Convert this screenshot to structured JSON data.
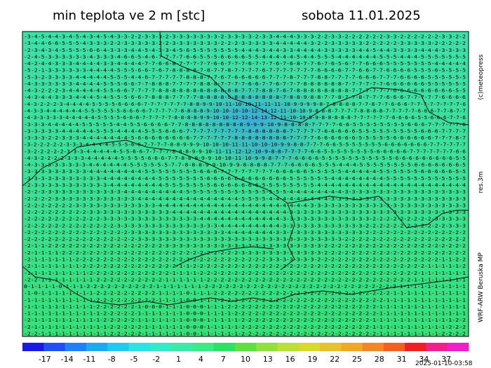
{
  "header": {
    "title": "min teplota ve 2 m [stc]",
    "date": "sobota 11.01.2025"
  },
  "side_labels": {
    "copyright": "(c)meteopress",
    "resolution": "res.3m",
    "model": "WRF-ARW Beruska MP"
  },
  "timestamp": "2025-01-10-03:58",
  "map": {
    "rows": [
      "-3-4-5-4-4-3-4-5-4-3-4-5-4-3-3-2-2-3-3-3-2-3-3-3-3-3-3-3-2-3-3-3-3-2-3-3-4-4-4-3-3-3-2-2-3-3-2-2-2-2-2-2-3-3-2-2-2-2-2-2-3-3-2-2",
      "-3-4-4-6-6-5-5-5-4-3-3-3-2-2-3-3-3-3-3-2-2-3-3-3-3-3-3-3-2-2-2-3-3-3-3-3-4-4-4-4-4-3-2-2-3-3-3-3-3-2-2-2-2-2-3-3-3-3-3-2-2-2-2-2",
      "-2-3-4-3-4-5-5-5-5-6-6-4-3-3-3-4-4-5-4-3-3-4-5-6-5-5-5-5-5-5-5-4-4-4-3-4-4-3-3-4-4-4-4-3-3-3-3-3-4-4-5-4-4-3-3-3-3-4-4-4-3-3-3-3",
      "-2-4-5-3-3-3-3-3-3-4-3-3-3-4-6-6-5-4-6-7-7-7-7-6-6-5-5-5-6-6-6-6-5-5-4-4-4-4-4-5-4-4-5-5-5-4-4-4-4-4-4-5-5-5-4-4-4-5-5-5-5-5-5-5",
      "-4-2-4-4-3-3-3-4-4-4-4-3-3-4-4-4-4-7-7-6-6-8-7-7-7-7-7-6-6-7-7-7-6-7-7-7-6-7-6-8-7-7-6-7-6-5-6-7-7-6-6-6-5-5-5-5-5-5-5-4-4-4-4-4",
      "-5-2-1-3-3-3-3-3-3-4-4-4-4-5-5-5-6-6-7-6-7-8-8-8-8-7-8-7-7-8-7-7-7-7-6-7-7-7-7-7-7-7-6-6-6-6-7-7-6-6-7-7-6-6-6-6-5-5-5-6-5-5-5-5",
      "-5-3-2-3-3-3-3-4-4-4-4-4-5-5-5-4-4-6-7-7-7-7-7-8-8-8-7-7-6-7-6-6-6-6-6-7-7-7-8-7-7-7-8-8-7-7-7-7-6-6-6-7-7-7-6-6-6-6-5-5-5-5-5-5",
      "-4-3-3-3-3-3-3-4-4-4-4-5-5-5-6-6-7-7-8-8-8-7-7-7-7-8-8-8-7-7-7-7-6-6-7-7-6-7-7-7-8-8-8-8-8-8-7-7-7-7-7-7-6-6-6-6-6-6-5-5-5-5-5-5",
      "-4-3-2-2-2-3-4-4-4-4-4-5-5-6-6-7-7-7-7-8-8-8-8-8-8-8-8-8-8-8-8-7-7-7-8-8-7-6-7-8-8-8-8-8-8-8-8-7-7-7-7-7-7-6-6-6-6-6-6-6-6-6-5-5",
      "-4-3-4-4-3-3-3-4-4-4-5-4-5-5-5-6-6-7-8-8-8-7-7-7-7-8-8-8-8-9-8-8-8-8-8-8-8-7-8-8-9-8-8-7-7-8-7-7-8-7-7-7-6-6-6-7-7-7-7-7-6-6-6-6",
      "-4-3-2-2-2-3-4-4-4-4-5-5-5-5-6-6-6-6-7-7-7-7-7-7-7-8-8-9-9-10-11-10-10-11-11-11-10-9-9-9-9-8-7-8-8-8-8-7-7-8-7-7-6-6-6-7-7-7-7-7-7-7-7-6",
      "-4-3-3-4-4-4-4-4-4-5-5-5-5-5-5-6-6-6-6-7-7-7-7-7-8-8-8-8-9-10-10-10-10-12-14-12-11-10-10-9-8-8-8-7-7-7-7-8-8-8-8-7-7-7-7-7-6-6-6-7-7-8-7-7",
      "-4-3-3-3-3-3-4-4-4-4-4-5-5-5-5-6-6-6-7-7-7-7-7-8-8-8-8-9-9-10-10-12-12-14-13-12-11-10-10-9-9-8-8-8-8-8-7-7-7-7-7-7-6-6-6-6-5-5-6-6-6-7-7-6",
      "-3-3-3-4-4-4-4-4-5-5-5-5-5-4-4-5-5-6-6-6-6-7-7-8-8-8-8-8-8-8-8-8-9-9-9-10-9-8-8-8-8-7-7-7-7-6-6-5-5-5-5-5-5-5-5-6-6-6-7-7-7-7-7-6",
      "-3-3-3-3-3-4-4-4-4-4-5-5-5-4-4-4-4-5-5-5-6-6-6-7-7-7-7-7-7-7-7-7-8-8-8-8-8-8-7-7-7-7-7-6-6-6-6-6-5-5-5-5-5-5-5-5-5-6-6-6-7-7-7-7",
      "-3-3-3-2-2-3-3-3-4-4-4-4-4-4-4-5-6-6-6-6-6-6-6-6-7-7-7-7-7-7-8-8-8-8-8-8-8-8-7-7-7-7-6-6-6-6-6-6-5-5-5-5-5-6-6-6-6-6-6-7-7-7-8-7",
      "-3-2-2-2-2-2-3-3-3-4-4-4-4-5-5-5-6-6-7-7-7-7-8-8-9-9-9-10-10-10-11-11-10-10-10-9-9-8-8-7-7-7-6-6-5-5-5-5-5-5-5-6-6-6-6-6-6-6-7-7-7-7-7-7",
      "-3-2-2-2-2-2-3-3-3-4-4-4-4-4-5-5-6-6-7-7-7-7-8-8-8-9-9-10-11-11-12-12-10-9-8-8-7-7-7-7-6-6-5-5-5-5-5-5-5-5-6-6-6-6-6-7-7-7-7-7-7-7-6-6",
      "-4-3-2-2-2-2-3-3-3-4-4-4-4-4-5-5-5-5-6-6-6-7-7-8-8-9-9-9-10-10-11-10-9-9-8-7-7-7-6-6-6-6-5-5-5-5-5-5-5-5-5-5-5-6-6-6-6-6-6-6-6-6-5-5",
      "-4-3-3-3-3-3-3-3-3-4-4-4-4-4-4-5-5-5-5-5-5-7-7-8-8-8-9-9-10-9-9-8-8-8-8-7-7-7-6-6-6-6-5-5-5-4-4-4-5-5-5-5-5-5-5-5-6-6-6-6-6-6-6-5",
      "-3-3-3-3-3-3-3-3-3-4-4-4-4-4-4-4-4-5-5-5-5-5-5-5-5-6-6-6-7-7-7-7-7-7-7-7-6-6-6-6-6-5-5-5-5-5-4-4-4-4-4-5-5-5-5-5-5-6-6-6-6-6-5-5",
      "-3-3-3-3-3-3-3-3-3-3-3-4-4-4-4-4-4-4-4-5-5-5-5-5-5-5-6-6-6-6-6-6-6-6-6-6-6-6-5-5-5-5-5-5-4-4-4-4-4-4-4-4-5-5-5-5-5-5-5-5-5-5-5-5",
      "-2-3-3-3-3-3-3-3-3-3-3-3-4-4-4-4-4-4-4-4-5-5-5-5-5-5-5-6-6-6-6-6-6-6-5-5-5-5-5-5-5-5-4-4-4-4-4-4-4-4-4-4-4-4-4-4-4-4-4-4-4-4-4-4",
      "-2-2-3-3-3-3-3-3-3-3-3-3-3-3-4-4-4-4-4-4-4-4-4-5-5-5-5-5-5-5-5-5-5-5-5-5-5-5-4-4-4-4-4-4-4-4-3-3-3-3-3-3-3-3-3-3-3-3-3-3-3-3-3-3",
      "-2-2-2-2-3-3-3-3-3-3-3-3-3-3-3-3-4-4-4-4-4-4-4-4-4-4-4-4-4-4-4-5-5-5-5-4-4-4-4-4-4-4-4-4-3-3-3-3-3-3-3-3-3-3-3-3-3-3-3-3-3-3-3-3",
      "-2-2-2-2-2-2-2-3-3-3-3-3-3-3-3-3-3-3-3-4-4-4-4-4-4-4-4-4-4-4-4-4-4-4-4-4-4-4-4-4-4-3-3-3-3-3-3-3-3-3-3-3-3-3-3-3-3-3-3-3-3-3-3-3",
      "-2-2-2-2-2-2-2-2-2-3-3-3-3-3-3-3-3-3-3-3-3-4-4-4-4-4-4-4-4-4-4-4-4-4-4-4-4-4-3-3-3-3-3-3-3-3-3-3-3-3-3-3-3-3-3-3-3-3-3-3-3-3-3-3",
      "-2-2-2-2-2-2-2-2-2-2-2-3-3-3-3-3-3-3-3-3-3-3-3-3-3-4-4-4-4-4-4-4-4-4-4-4-4-3-3-3-3-3-3-3-3-3-3-3-3-3-2-2-2-2-2-2-2-2-2-3-3-3-3-3",
      "-2-2-2-2-2-2-2-2-2-2-2-2-2-3-3-3-3-3-3-3-3-3-3-3-3-3-3-3-4-4-4-4-4-4-4-4-4-3-3-3-3-3-3-3-3-3-3-3-3-2-2-2-2-2-2-2-2-2-2-2-2-3-3-3",
      "-2-2-2-2-2-2-2-2-2-2-2-2-2-2-2-3-3-3-3-3-3-3-3-3-3-3-3-3-3-4-4-4-4-4-4-4-3-3-3-3-3-3-3-3-3-3-3-3-3-2-2-2-2-2-2-2-2-2-2-2-2-2-2-2",
      "-2-2-2-2-2-2-2-2-2-2-2-2-2-2-2-2-3-3-3-3-3-3-3-3-3-3-3-3-3-3-3-3-3-3-3-3-3-3-3-3-3-3-3-3-3-3-2-2-2-2-2-2-2-2-2-2-2-2-2-2-2-2-2-2",
      "-2-1-1-2-2-2-2-2-2-2-2-2-2-2-2-2-2-2-2-2-3-3-3-3-3-3-3-3-3-3-3-3-3-3-3-3-3-3-3-3-3-3-3-2-2-2-2-2-2-2-2-2-2-2-2-2-2-2-2-2-2-2-2-2",
      "-2-1-1-1-1-2-2-2-2-2-2-2-2-2-2-2-2-2-2-2-2-2-2-2-2-2-2-2-2-2-2-3-3-3-3-3-3-3-3-3-3-3-3-2-2-2-2-2-2-2-2-2-2-2-2-2-2-2-2-2-2-2-2-2",
      "-2-1-1-1-1-1-1-2-2-2-2-2-2-2-2-2-2-2-2-2-2-2-2-2-2-2-2-2-2-2-2-2-2-2-2-3-3-3-3-3-3-3-2-2-2-2-2-2-2-2-2-2-2-2-2-2-2-2-2-2-1-1-2-2",
      "-2-1-1-1-1-1-1-1-2-2-2-2-2-2-2-2-2-2-2-2-2-2-1-1-2-2-2-2-2-2-2-2-2-2-2-2-2-2-2-2-2-2-2-2-2-2-2-2-2-2-2-2-2-2-2-2-2-2-1-1-1-1-1-2",
      "-1-1-1-1-1-1-1-1-1-2-2-2-2-2-2-2-2-2-2-2-2-1-1-1-1-2-2-2-2-2-2-2-2-2-2-2-2-2-2-2-2-2-2-2-2-2-2-2-2-2-2-2-2-2-2-2-2-1-1-1-1-1-1-1",
      "-2-2-1-1-1-1-1-1-1-1-2-2-2-2-2-2-2-2-2-2-1-1-1-1-1-1-2-2-2-2-2-2-2-2-2-2-2-2-2-2-2-2-2-2-2-2-2-2-2-2-2-2-2-2-2-2-1-1-1-1-1-1-1-1",
      "0-1-1-1-1-0-1-1-1-2-2-2-2-2-2-2-2-2-2-1-1-1-1-1-1-1-2-2-2-2-2-2-2-2-2-2-2-2-2-2-2-2-2-2-2-2-2-2-2-2-2-2-2-2-1-1-1-1-1-1-1-1-1-1",
      "-1-0-1-1-1-1-1-1-1-1-2-2-2-2-2-2-2-2-2-1-1-1-1-0-1-1-1-2-2-2-2-2-2-2-2-2-2-2-2-2-2-2-2-2-2-2-2-2-2-2-2-2-2-1-1-1-1-1-1-1-1-1-1-1",
      "-1-1-1-1-1-1-1-1-1-1-2-2-2-2-2-2-2-2-2-1-1-1-1-0-0-1-1-1-2-2-2-2-2-2-2-2-2-2-2-2-2-2-2-2-2-2-2-2-2-2-2-2-1-1-1-1-1-1-1-1-1-1-1-1",
      "-1-1-1-1-1-1-1-1-1-1-2-2-2-2-2-2-1-0-0-0-1-1-1-0-0-0-1-1-1-2-2-2-2-2-2-2-2-2-2-2-2-2-2-2-2-2-2-2-2-2-2-1-1-1-1-1-1-1-1-1-1-1-1-1",
      "-1-1-1-1-1-1-1-1-1-1-1-2-2-2-2-2-1-1-1-1-1-1-1-0-0-0-1-1-1-1-2-2-2-2-2-2-2-2-2-2-2-2-2-2-2-2-2-2-2-2-2-1-1-1-1-1-1-1-1-1-1-1-1-1",
      "-2-1-1-1-1-1-1-1-1-1-1-2-2-2-2-2-1-1-1-1-1-1-1-0-0-0-1-1-1-1-1-2-2-2-2-2-2-2-2-2-2-2-2-2-2-2-2-2-2-2-1-1-1-1-1-1-1-1-1-1-1-1-2-2",
      "-2-1-1-1-1-1-1-1-1-1-1-1-2-2-2-2-2-1-1-1-1-1-1-0-0-0-1-1-1-1-1-2-2-2-2-2-2-2-2-2-2-2-2-2-2-2-2-2-2-2-1-1-1-1-1-1-1-1-1-1-1-2-2-2",
      "-2-2-1-1-1-1-1-1-1-1-1-1-2-2-2-2-2-1-1-1-1-1-1-0-0-1-1-1-1-1-1-2-2-2-2-2-2-2-2-2-2-2-2-2-2-2-2-2-2-2-2-1-1-1-1-1-1-1-1-1-2-2-2-2"
    ]
  },
  "colorbar": {
    "lim": [
      -20,
      40
    ],
    "ticks": [
      -17,
      -14,
      -11,
      -8,
      -5,
      -2,
      1,
      4,
      7,
      10,
      13,
      16,
      19,
      22,
      25,
      28,
      31,
      34,
      37
    ],
    "colors": [
      "#1a1ae6",
      "#1f50f0",
      "#2080f5",
      "#20a8f0",
      "#25c8f0",
      "#30e0e8",
      "#38e8c8",
      "#3ee8a8",
      "#40e888",
      "#30e060",
      "#60e040",
      "#90e040",
      "#b8e038",
      "#d8d830",
      "#e8c030",
      "#f0a828",
      "#f08828",
      "#f06020",
      "#f02020",
      "#f0208c",
      "#f020c8"
    ]
  }
}
